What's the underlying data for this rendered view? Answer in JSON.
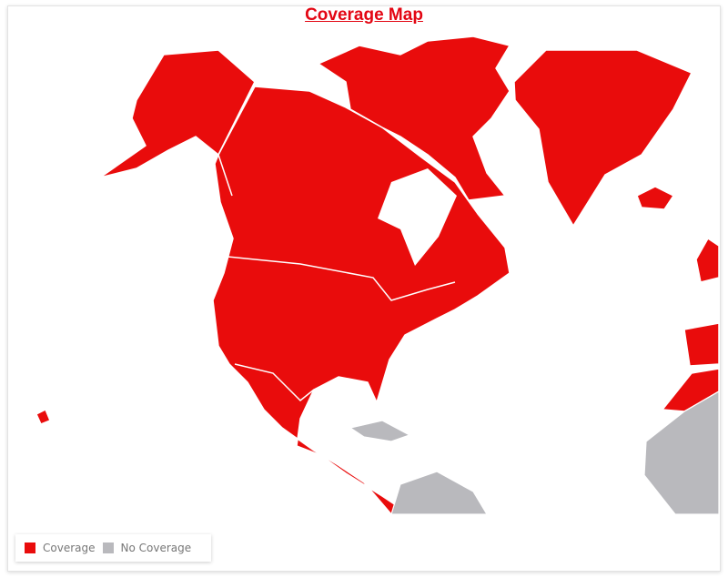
{
  "title": "Coverage Map",
  "colors": {
    "coverage": "#e90c0c",
    "no_coverage": "#b9b9bd",
    "border": "#ffffff"
  },
  "legend": [
    {
      "label": "Coverage",
      "color": "#e90c0c"
    },
    {
      "label": "No Coverage",
      "color": "#b9b9bd"
    }
  ]
}
